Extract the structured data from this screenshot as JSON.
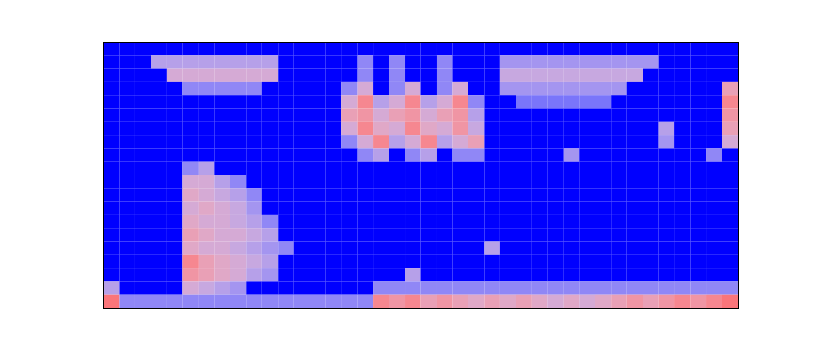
{
  "chart_data": {
    "type": "heatmap",
    "tick_labels": false,
    "zlim": [
      0,
      1
    ],
    "cells": [
      [
        0,
        0,
        0,
        0,
        0,
        0,
        0,
        0,
        0,
        0,
        0,
        0,
        0,
        0,
        0,
        0,
        0,
        0,
        0,
        0,
        0,
        0,
        0,
        0,
        0,
        0,
        0,
        0,
        0,
        0,
        0,
        0,
        0,
        0,
        0,
        0,
        0,
        0,
        0,
        0
      ],
      [
        0,
        0,
        0,
        0.4,
        0.4,
        0.4,
        0.4,
        0.4,
        0.4,
        0.4,
        0.4,
        0,
        0,
        0,
        0,
        0,
        0.3,
        0,
        0.3,
        0,
        0,
        0.3,
        0,
        0,
        0,
        0.35,
        0.35,
        0.35,
        0.35,
        0.35,
        0.35,
        0.35,
        0.35,
        0.35,
        0.35,
        0,
        0,
        0,
        0,
        0
      ],
      [
        0,
        0,
        0,
        0,
        0.5,
        0.5,
        0.5,
        0.5,
        0.5,
        0.5,
        0.5,
        0,
        0,
        0,
        0,
        0,
        0.3,
        0,
        0.3,
        0,
        0,
        0.3,
        0,
        0,
        0,
        0.45,
        0.45,
        0.45,
        0.45,
        0.45,
        0.45,
        0.45,
        0.45,
        0.45,
        0,
        0,
        0,
        0,
        0,
        0
      ],
      [
        0,
        0,
        0,
        0,
        0,
        0.3,
        0.3,
        0.3,
        0.3,
        0.3,
        0,
        0,
        0,
        0,
        0,
        0.3,
        0.5,
        0,
        0.3,
        0.5,
        0,
        0.3,
        0.5,
        0,
        0,
        0.35,
        0.35,
        0.35,
        0.35,
        0.35,
        0.35,
        0.35,
        0.35,
        0,
        0,
        0,
        0,
        0,
        0,
        0.6
      ],
      [
        0,
        0,
        0,
        0,
        0,
        0,
        0,
        0,
        0,
        0,
        0,
        0,
        0,
        0,
        0,
        0.5,
        0.7,
        0.4,
        0.5,
        0.7,
        0.4,
        0.5,
        0.7,
        0.3,
        0,
        0,
        0.25,
        0.25,
        0.25,
        0.25,
        0.25,
        0.25,
        0,
        0,
        0,
        0,
        0,
        0,
        0,
        0.7
      ],
      [
        0,
        0,
        0,
        0,
        0,
        0,
        0,
        0,
        0,
        0,
        0,
        0,
        0,
        0,
        0,
        0.6,
        0.65,
        0.5,
        0.6,
        0.65,
        0.5,
        0.6,
        0.65,
        0.4,
        0,
        0,
        0,
        0,
        0,
        0,
        0,
        0,
        0,
        0,
        0,
        0,
        0,
        0,
        0,
        0.65
      ],
      [
        0,
        0,
        0,
        0,
        0,
        0,
        0,
        0,
        0,
        0,
        0,
        0,
        0,
        0,
        0,
        0.5,
        0.7,
        0.55,
        0.5,
        0.7,
        0.55,
        0.5,
        0.65,
        0.45,
        0,
        0,
        0,
        0,
        0,
        0,
        0,
        0,
        0,
        0,
        0,
        0.4,
        0,
        0,
        0,
        0.6
      ],
      [
        0,
        0,
        0,
        0,
        0,
        0,
        0,
        0,
        0,
        0,
        0,
        0,
        0,
        0,
        0,
        0.3,
        0.5,
        0.7,
        0.4,
        0.5,
        0.7,
        0.4,
        0.5,
        0.6,
        0,
        0,
        0,
        0,
        0,
        0,
        0,
        0,
        0,
        0,
        0,
        0.35,
        0,
        0,
        0,
        0.5
      ],
      [
        0,
        0,
        0,
        0,
        0,
        0,
        0,
        0,
        0,
        0,
        0,
        0,
        0,
        0,
        0,
        0,
        0.3,
        0.4,
        0,
        0.3,
        0.4,
        0,
        0.3,
        0.3,
        0,
        0,
        0,
        0,
        0,
        0.35,
        0,
        0,
        0,
        0,
        0,
        0,
        0,
        0,
        0.3,
        0
      ],
      [
        0,
        0,
        0,
        0,
        0,
        0.3,
        0.4,
        0,
        0,
        0,
        0,
        0,
        0,
        0,
        0,
        0,
        0,
        0,
        0,
        0,
        0,
        0,
        0,
        0,
        0,
        0,
        0,
        0,
        0,
        0,
        0,
        0,
        0,
        0,
        0,
        0,
        0,
        0,
        0,
        0
      ],
      [
        0,
        0,
        0,
        0,
        0,
        0.5,
        0.5,
        0.4,
        0.3,
        0,
        0,
        0,
        0,
        0,
        0,
        0,
        0,
        0,
        0,
        0,
        0,
        0,
        0,
        0,
        0,
        0,
        0,
        0,
        0,
        0,
        0,
        0,
        0,
        0,
        0,
        0,
        0,
        0,
        0,
        0
      ],
      [
        0,
        0,
        0,
        0,
        0,
        0.55,
        0.5,
        0.45,
        0.4,
        0.3,
        0,
        0,
        0,
        0,
        0,
        0,
        0,
        0,
        0,
        0,
        0,
        0,
        0,
        0,
        0,
        0,
        0,
        0,
        0,
        0,
        0,
        0,
        0,
        0,
        0,
        0,
        0,
        0,
        0,
        0
      ],
      [
        0,
        0,
        0,
        0,
        0,
        0.5,
        0.55,
        0.5,
        0.45,
        0.35,
        0,
        0,
        0,
        0,
        0,
        0,
        0,
        0,
        0,
        0,
        0,
        0,
        0,
        0,
        0,
        0,
        0,
        0,
        0,
        0,
        0,
        0,
        0,
        0,
        0,
        0,
        0,
        0,
        0,
        0
      ],
      [
        0,
        0,
        0,
        0,
        0,
        0.55,
        0.5,
        0.5,
        0.45,
        0.4,
        0.3,
        0,
        0,
        0,
        0,
        0,
        0,
        0,
        0,
        0,
        0,
        0,
        0,
        0,
        0,
        0,
        0,
        0,
        0,
        0,
        0,
        0,
        0,
        0,
        0,
        0,
        0,
        0,
        0,
        0
      ],
      [
        0,
        0,
        0,
        0,
        0,
        0.6,
        0.55,
        0.5,
        0.5,
        0.45,
        0.4,
        0,
        0,
        0,
        0,
        0,
        0,
        0,
        0,
        0,
        0,
        0,
        0,
        0,
        0,
        0,
        0,
        0,
        0,
        0,
        0,
        0,
        0,
        0,
        0,
        0,
        0,
        0,
        0,
        0
      ],
      [
        0,
        0,
        0,
        0,
        0,
        0.55,
        0.5,
        0.5,
        0.45,
        0.4,
        0.35,
        0.3,
        0,
        0,
        0,
        0,
        0,
        0,
        0,
        0,
        0,
        0,
        0,
        0,
        0.4,
        0,
        0,
        0,
        0,
        0,
        0,
        0,
        0,
        0,
        0,
        0,
        0,
        0,
        0,
        0
      ],
      [
        0,
        0,
        0,
        0,
        0,
        0.7,
        0.6,
        0.55,
        0.5,
        0.45,
        0.4,
        0,
        0,
        0,
        0,
        0,
        0,
        0,
        0,
        0,
        0,
        0,
        0,
        0,
        0,
        0,
        0,
        0,
        0,
        0,
        0,
        0,
        0,
        0,
        0,
        0,
        0,
        0,
        0,
        0
      ],
      [
        0,
        0,
        0,
        0,
        0,
        0.65,
        0.6,
        0.55,
        0.5,
        0.4,
        0.35,
        0,
        0,
        0,
        0,
        0,
        0,
        0,
        0,
        0.4,
        0,
        0,
        0,
        0,
        0,
        0,
        0,
        0,
        0,
        0,
        0,
        0,
        0,
        0,
        0,
        0,
        0,
        0,
        0,
        0
      ],
      [
        0.4,
        0,
        0,
        0,
        0,
        0.5,
        0.45,
        0.4,
        0.35,
        0,
        0,
        0,
        0,
        0,
        0,
        0,
        0,
        0.3,
        0.3,
        0.3,
        0.3,
        0.3,
        0.3,
        0.3,
        0.3,
        0.3,
        0.3,
        0.3,
        0.3,
        0.3,
        0.3,
        0.3,
        0.3,
        0.3,
        0.3,
        0.3,
        0.3,
        0.3,
        0.3,
        0.3
      ],
      [
        0.75,
        0.3,
        0.3,
        0.3,
        0.3,
        0.3,
        0.3,
        0.3,
        0.3,
        0.3,
        0.3,
        0.3,
        0.3,
        0.3,
        0.3,
        0.3,
        0.3,
        0.7,
        0.65,
        0.7,
        0.6,
        0.65,
        0.6,
        0.55,
        0.6,
        0.55,
        0.6,
        0.55,
        0.5,
        0.55,
        0.5,
        0.55,
        0.6,
        0.65,
        0.6,
        0.65,
        0.7,
        0.65,
        0.7,
        0.75
      ]
    ]
  }
}
